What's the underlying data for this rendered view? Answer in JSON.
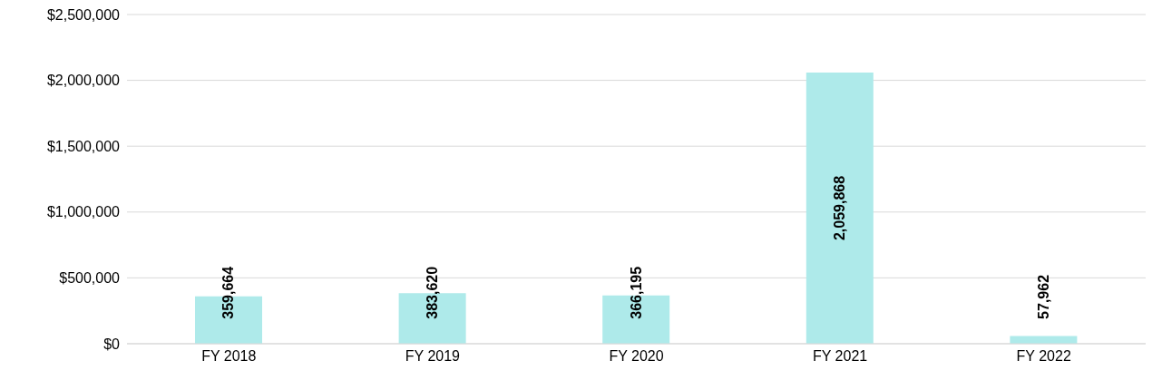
{
  "chart_data": {
    "type": "bar",
    "categories": [
      "FY 2018",
      "FY 2019",
      "FY 2020",
      "FY 2021",
      "FY 2022"
    ],
    "values": [
      359664,
      383620,
      366195,
      2059868,
      57962
    ],
    "color": "#aeeaea",
    "ylim": [
      0,
      2500000
    ],
    "yticks": [
      {
        "value": 0,
        "label": "$0"
      },
      {
        "value": 500000,
        "label": "$500,000"
      },
      {
        "value": 1000000,
        "label": "$1,000,000"
      },
      {
        "value": 1500000,
        "label": "$1,500,000"
      },
      {
        "value": 2000000,
        "label": "$2,000,000"
      },
      {
        "value": 2500000,
        "label": "$2,500,000"
      }
    ],
    "value_labels": [
      "359,664",
      "383,620",
      "366,195",
      "2,059,868",
      "57,962"
    ],
    "grid": "y"
  }
}
